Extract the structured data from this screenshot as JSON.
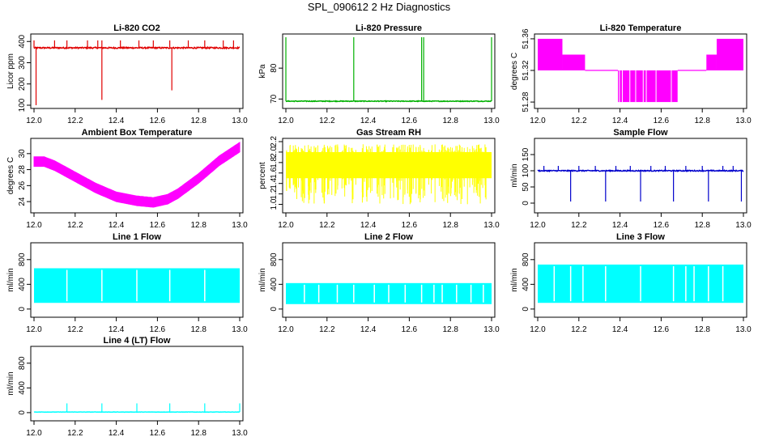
{
  "title": "SPL_090612  2 Hz Diagnostics",
  "chart_data": [
    {
      "type": "line",
      "title": "Li-820 CO2",
      "ylabel": "Licor ppm",
      "color": "#e00000",
      "xlim": [
        12.0,
        13.0
      ],
      "ylim": [
        100,
        420
      ],
      "xticks": [
        "12.0",
        "12.2",
        "12.4",
        "12.6",
        "12.8",
        "13.0"
      ],
      "yticks": [
        100,
        200,
        300,
        400
      ],
      "series": [
        {
          "kind": "baseline",
          "level": 370,
          "noise": 8,
          "spikes_up": [
            12.0,
            12.1,
            12.16,
            12.26,
            12.31,
            12.33,
            12.42,
            12.51,
            12.58,
            12.66,
            12.75,
            12.83,
            12.92,
            12.97
          ],
          "spike_up_to": 405,
          "spikes_down": [
            [
              12.01,
              100
            ],
            [
              12.33,
              125
            ],
            [
              12.67,
              170
            ]
          ]
        }
      ]
    },
    {
      "type": "line",
      "title": "Li-820 Pressure",
      "ylabel": "kPa",
      "color": "#00b000",
      "xlim": [
        12.0,
        13.0
      ],
      "ylim": [
        68,
        90
      ],
      "xticks": [
        "12.0",
        "12.2",
        "12.4",
        "12.6",
        "12.8",
        "13.0"
      ],
      "yticks": [
        70,
        80
      ],
      "series": [
        {
          "kind": "baseline",
          "level": 69.3,
          "noise": 0.3,
          "spikes_up": [
            12.0,
            12.33,
            12.66,
            12.67,
            13.0
          ],
          "spike_up_to": 90,
          "spikes_down": []
        }
      ]
    },
    {
      "type": "area",
      "title": "Li-820 Temperature",
      "ylabel": "degrees C",
      "color": "#ff00ff",
      "xlim": [
        12.0,
        13.0
      ],
      "ylim": [
        51.276,
        51.362
      ],
      "xticks": [
        "12.0",
        "12.2",
        "12.4",
        "12.6",
        "12.8",
        "13.0"
      ],
      "yticks": [
        "51.28",
        "51.32",
        "51.36"
      ],
      "series": [
        {
          "kind": "bands",
          "segments": [
            [
              12.0,
              12.12,
              51.32,
              51.36
            ],
            [
              12.12,
              12.23,
              51.32,
              51.34
            ],
            [
              12.23,
              12.39,
              51.32,
              51.32
            ],
            [
              12.39,
              12.68,
              51.28,
              51.32
            ],
            [
              12.68,
              12.82,
              51.32,
              51.32
            ],
            [
              12.82,
              12.87,
              51.32,
              51.34
            ],
            [
              12.87,
              13.0,
              51.32,
              51.36
            ]
          ]
        }
      ]
    },
    {
      "type": "scatter",
      "title": "Ambient Box Temperature",
      "ylabel": "degrees C",
      "color": "#ff00ff",
      "xlim": [
        12.0,
        13.0
      ],
      "ylim": [
        23,
        31.5
      ],
      "xticks": [
        "12.0",
        "12.2",
        "12.4",
        "12.6",
        "12.8",
        "13.0"
      ],
      "yticks": [
        24,
        26,
        28,
        30
      ],
      "series": [
        {
          "kind": "curve",
          "band": 0.6,
          "x": [
            12.0,
            12.05,
            12.1,
            12.2,
            12.3,
            12.4,
            12.5,
            12.58,
            12.65,
            12.7,
            12.8,
            12.9,
            13.0
          ],
          "y": [
            29.0,
            29.0,
            28.5,
            27.1,
            25.7,
            24.6,
            24.1,
            23.9,
            24.3,
            25.0,
            26.9,
            29.1,
            30.8
          ]
        }
      ]
    },
    {
      "type": "area",
      "title": "Gas Stream RH",
      "ylabel": "percent",
      "color": "#ffff00",
      "xlim": [
        12.0,
        13.0
      ],
      "ylim": [
        0.9,
        2.2
      ],
      "xticks": [
        "12.0",
        "12.2",
        "12.4",
        "12.6",
        "12.8",
        "13.0"
      ],
      "yticks": [
        "1.0",
        "1.2",
        "1.4",
        "1.6",
        "1.8",
        "2.0",
        "2.2"
      ],
      "series": [
        {
          "kind": "noise",
          "lo": 1.0,
          "hi": 2.0,
          "dense_lo": 1.5,
          "dense_hi": 2.0,
          "spike_max": 2.15
        }
      ]
    },
    {
      "type": "line",
      "title": "Sample Flow",
      "ylabel": "ml/min",
      "color": "#0000cc",
      "xlim": [
        12.0,
        13.0
      ],
      "ylim": [
        -20,
        190
      ],
      "xticks": [
        "12.0",
        "12.2",
        "12.4",
        "12.6",
        "12.8",
        "13.0"
      ],
      "yticks": [
        0,
        50,
        100,
        150
      ],
      "series": [
        {
          "kind": "baseline",
          "level": 100,
          "noise": 4,
          "spikes_up": [
            12.03,
            12.1,
            12.2,
            12.28,
            12.38,
            12.45,
            12.55,
            12.62,
            12.72,
            12.8,
            12.9,
            12.95
          ],
          "spike_up_to": 115,
          "spikes_down": [
            [
              12.16,
              5
            ],
            [
              12.33,
              5
            ],
            [
              12.5,
              5
            ],
            [
              12.66,
              5
            ],
            [
              12.83,
              5
            ],
            [
              12.99,
              5
            ]
          ]
        }
      ]
    },
    {
      "type": "area",
      "title": "Line 1 Flow",
      "ylabel": "ml/min",
      "color": "#00ffff",
      "xlim": [
        12.0,
        13.0
      ],
      "ylim": [
        -80,
        1020
      ],
      "xticks": [
        "12.0",
        "12.2",
        "12.4",
        "12.6",
        "12.8",
        "13.0"
      ],
      "yticks": [
        0,
        400,
        800
      ],
      "series": [
        {
          "kind": "block",
          "lo": 100,
          "hi": 660,
          "gaps": [
            12.16,
            12.33,
            12.5,
            12.66,
            12.83
          ]
        }
      ]
    },
    {
      "type": "area",
      "title": "Line 2 Flow",
      "ylabel": "ml/min",
      "color": "#00ffff",
      "xlim": [
        12.0,
        13.0
      ],
      "ylim": [
        -80,
        1020
      ],
      "xticks": [
        "12.0",
        "12.2",
        "12.4",
        "12.6",
        "12.8",
        "13.0"
      ],
      "yticks": [
        0,
        400,
        800
      ],
      "series": [
        {
          "kind": "block",
          "lo": 80,
          "hi": 420,
          "gaps": [
            12.09,
            12.16,
            12.25,
            12.33,
            12.43,
            12.5,
            12.58,
            12.66,
            12.72,
            12.76,
            12.83,
            12.9,
            12.96
          ]
        }
      ]
    },
    {
      "type": "area",
      "title": "Line 3 Flow",
      "ylabel": "ml/min",
      "color": "#00ffff",
      "xlim": [
        12.0,
        13.0
      ],
      "ylim": [
        -80,
        1020
      ],
      "xticks": [
        "12.0",
        "12.2",
        "12.4",
        "12.6",
        "12.8",
        "13.0"
      ],
      "yticks": [
        0,
        400,
        800
      ],
      "series": [
        {
          "kind": "block",
          "lo": 100,
          "hi": 720,
          "gaps": [
            12.08,
            12.16,
            12.22,
            12.33,
            12.5,
            12.66,
            12.72,
            12.76,
            12.83,
            12.9
          ]
        }
      ]
    },
    {
      "type": "line",
      "title": "Line 4 (LT) Flow",
      "ylabel": "ml/min",
      "color": "#00ffff",
      "xlim": [
        12.0,
        13.0
      ],
      "ylim": [
        -80,
        1020
      ],
      "xticks": [
        "12.0",
        "12.2",
        "12.4",
        "12.6",
        "12.8",
        "13.0"
      ],
      "yticks": [
        0,
        400,
        800
      ],
      "series": [
        {
          "kind": "baseline",
          "level": 10,
          "noise": 6,
          "spikes_up": [
            12.16,
            12.33,
            12.5,
            12.66,
            12.83,
            13.0
          ],
          "spike_up_to": 150,
          "spikes_down": []
        }
      ]
    }
  ]
}
